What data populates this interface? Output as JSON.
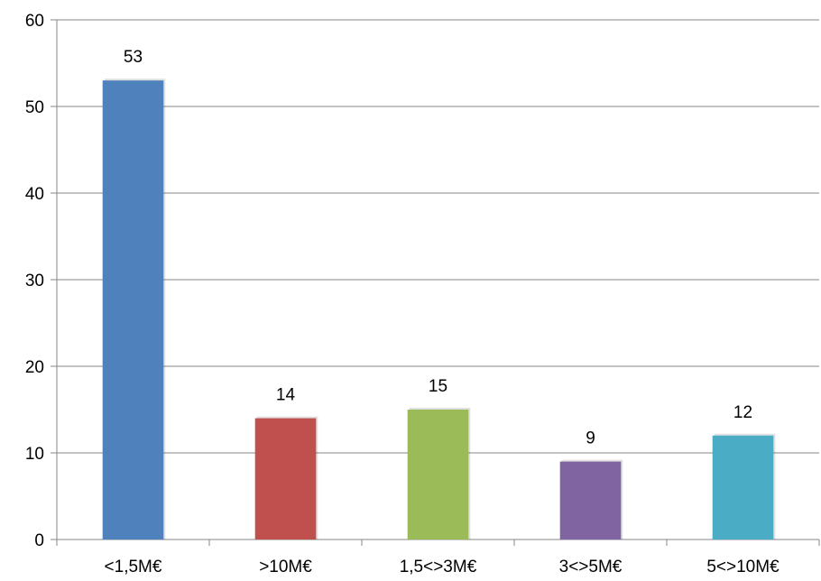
{
  "chart_data": {
    "type": "bar",
    "categories": [
      "<1,5M€",
      ">10M€",
      "1,5<>3M€",
      "3<>5M€",
      "5<>10M€"
    ],
    "values": [
      53,
      14,
      15,
      9,
      12
    ],
    "data_labels": [
      "53",
      "14",
      "15",
      "9",
      "12"
    ],
    "colors": [
      "#4F81BD",
      "#C0504D",
      "#9BBB59",
      "#8064A2",
      "#4BACC6"
    ],
    "ylim": [
      0,
      60
    ],
    "yticks": [
      0,
      10,
      20,
      30,
      40,
      50,
      60
    ],
    "ytick_labels": [
      "0",
      "10",
      "20",
      "30",
      "40",
      "50",
      "60"
    ],
    "grid": true,
    "title": "",
    "xlabel": "",
    "ylabel": ""
  }
}
